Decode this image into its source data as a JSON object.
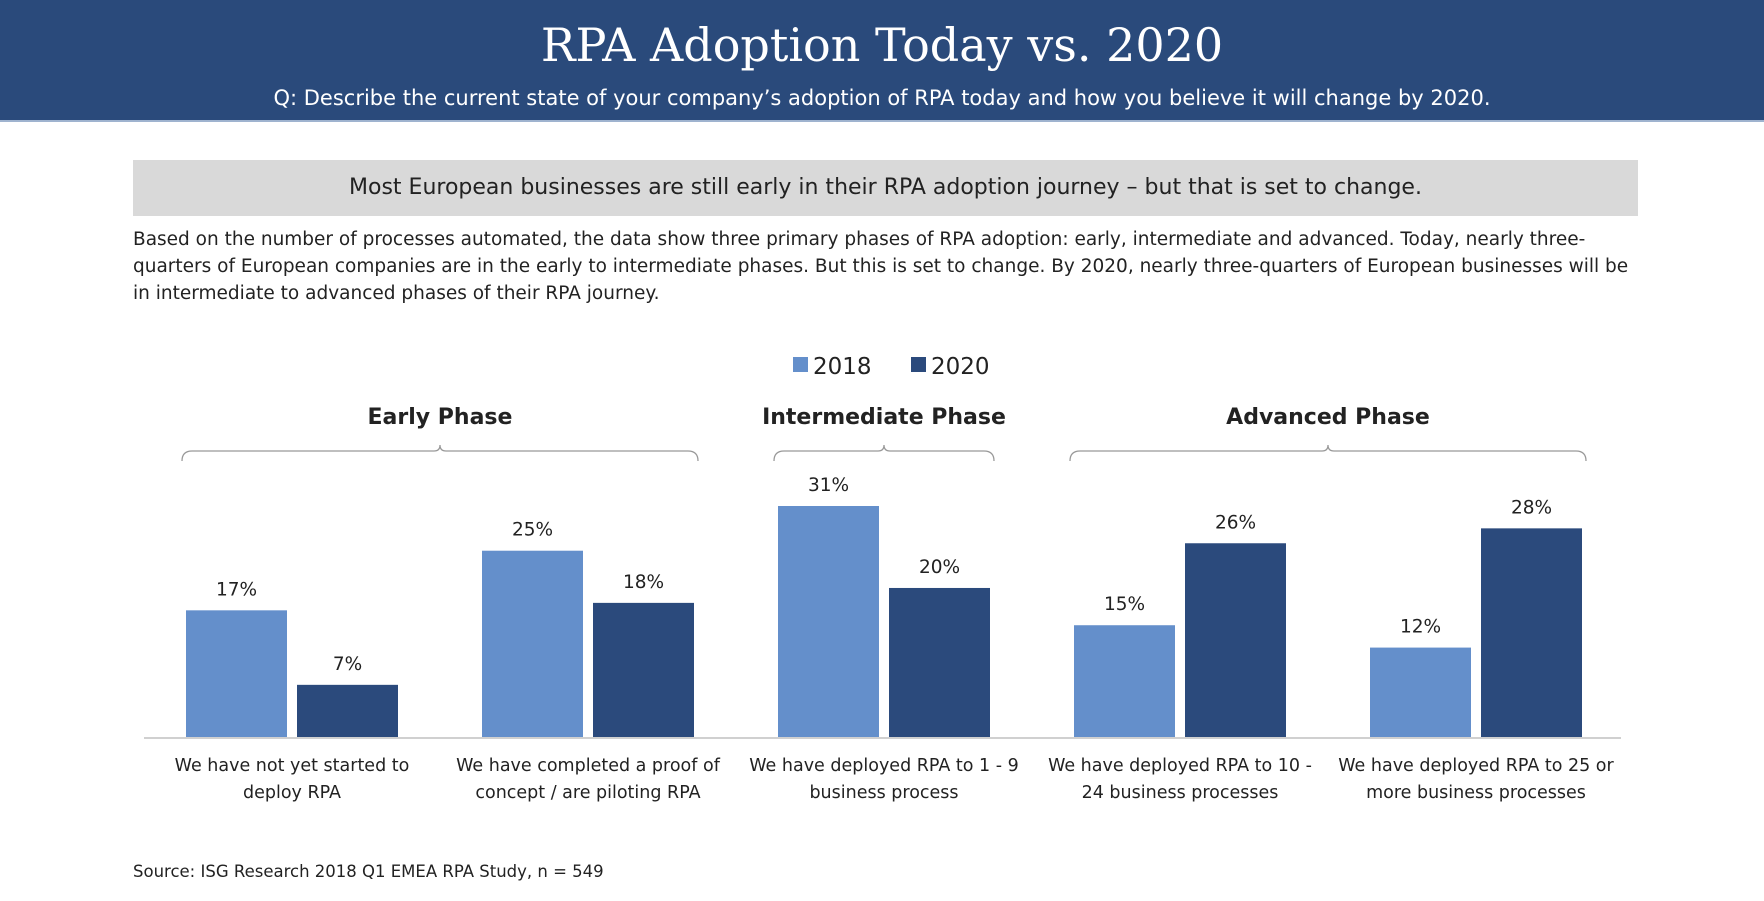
{
  "header": {
    "title": "RPA Adoption Today vs. 2020",
    "subtitle": "Q: Describe the current state of your company’s adoption of RPA today and how you believe it will change by 2020."
  },
  "callout": "Most European businesses are still early in their RPA adoption journey – but that is set to change.",
  "paragraph": "Based on the number of processes automated, the data show three primary phases of RPA adoption: early, intermediate and advanced. Today, nearly three-quarters of European companies are in the early to intermediate phases. But this is set to change. By 2020, nearly three-quarters of European businesses will be in intermediate to advanced phases of their RPA journey.",
  "source": "Source: ISG Research 2018 Q1 EMEA RPA Study, n = 549",
  "chart_data": {
    "type": "bar",
    "legend_position": "top",
    "grid": false,
    "ylim": [
      0,
      31
    ],
    "categories": [
      [
        "We have not yet started to",
        "deploy RPA"
      ],
      [
        "We have completed a proof of",
        "concept / are piloting RPA"
      ],
      [
        "We have deployed RPA to 1 - 9",
        "business process"
      ],
      [
        "We have deployed RPA to 10 -",
        "24 business processes"
      ],
      [
        "We have deployed RPA to 25 or",
        "more business processes"
      ]
    ],
    "series": [
      {
        "name": "2018",
        "values": [
          17,
          25,
          31,
          15,
          12
        ],
        "labels": [
          "17%",
          "25%",
          "31%",
          "15%",
          "12%"
        ],
        "color": "#648fcb"
      },
      {
        "name": "2020",
        "values": [
          7,
          18,
          20,
          26,
          28
        ],
        "labels": [
          "7%",
          "18%",
          "20%",
          "26%",
          "28%"
        ],
        "color": "#2b4a7c"
      }
    ],
    "groups": [
      {
        "label": "Early Phase",
        "categories": [
          0,
          1
        ]
      },
      {
        "label": "Intermediate Phase",
        "categories": [
          2
        ]
      },
      {
        "label": "Advanced Phase",
        "categories": [
          3,
          4
        ]
      }
    ]
  }
}
